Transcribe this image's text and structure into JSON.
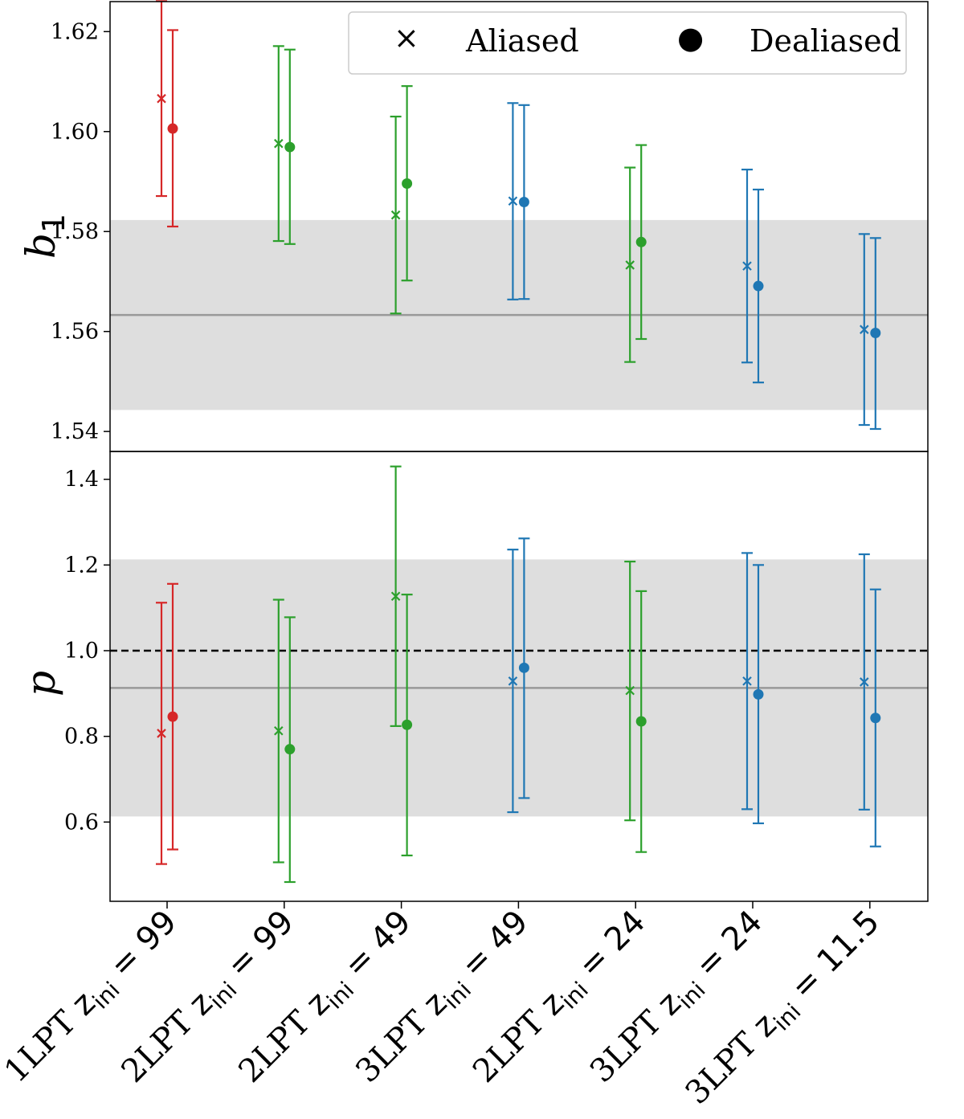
{
  "chart_data": [
    {
      "type": "errorbar",
      "panel": "top",
      "ylabel_main": "b",
      "ylabel_sub": "1",
      "ylim": [
        1.536,
        1.626
      ],
      "yticks": [
        1.54,
        1.56,
        1.58,
        1.6,
        1.62
      ],
      "ytick_labels": [
        "1.54",
        "1.56",
        "1.58",
        "1.60",
        "1.62"
      ],
      "reference": {
        "mean": 1.5633,
        "band": [
          1.5443,
          1.5823
        ]
      },
      "series": [
        {
          "name": "Aliased",
          "marker": "x",
          "values": [
            1.6066,
            1.5976,
            1.5833,
            1.5861,
            1.5733,
            1.5731,
            1.5604
          ],
          "lower": [
            1.5871,
            1.5781,
            1.5636,
            1.5664,
            1.5539,
            1.5538,
            1.5413
          ],
          "upper": [
            1.6261,
            1.6171,
            1.603,
            1.6057,
            1.5928,
            1.5924,
            1.5795
          ]
        },
        {
          "name": "Dealiased",
          "marker": "o",
          "values": [
            1.6006,
            1.5969,
            1.5896,
            1.5859,
            1.5779,
            1.5691,
            1.5597
          ],
          "lower": [
            1.581,
            1.5775,
            1.5702,
            1.5665,
            1.5585,
            1.5498,
            1.5405
          ],
          "upper": [
            1.6203,
            1.6164,
            1.6091,
            1.6053,
            1.5973,
            1.5884,
            1.5787
          ]
        }
      ]
    },
    {
      "type": "errorbar",
      "panel": "bottom",
      "ylabel_main": "p",
      "ylim": [
        0.415,
        1.465
      ],
      "yticks": [
        0.6,
        0.8,
        1.0,
        1.2,
        1.4
      ],
      "ytick_labels": [
        "0.6",
        "0.8",
        "1.0",
        "1.2",
        "1.4"
      ],
      "reference": {
        "mean": 0.913,
        "band": [
          0.613,
          1.213
        ]
      },
      "dashed_line": 1.0,
      "series": [
        {
          "name": "Aliased",
          "marker": "x",
          "values": [
            0.807,
            0.813,
            1.127,
            0.929,
            0.907,
            0.929,
            0.927
          ],
          "lower": [
            0.502,
            0.506,
            0.824,
            0.623,
            0.604,
            0.63,
            0.629
          ],
          "upper": [
            1.112,
            1.119,
            1.43,
            1.236,
            1.208,
            1.228,
            1.225
          ]
        },
        {
          "name": "Dealiased",
          "marker": "o",
          "values": [
            0.846,
            0.77,
            0.827,
            0.96,
            0.835,
            0.898,
            0.843
          ],
          "lower": [
            0.536,
            0.46,
            0.522,
            0.656,
            0.53,
            0.597,
            0.543
          ],
          "upper": [
            1.156,
            1.078,
            1.131,
            1.262,
            1.139,
            1.2,
            1.143
          ]
        }
      ]
    }
  ],
  "categories": [
    {
      "method": "1LPT",
      "z": "99",
      "color": "#d62728"
    },
    {
      "method": "2LPT",
      "z": "99",
      "color": "#2ca02c"
    },
    {
      "method": "2LPT",
      "z": "49",
      "color": "#2ca02c"
    },
    {
      "method": "3LPT",
      "z": "49",
      "color": "#1f77b4"
    },
    {
      "method": "2LPT",
      "z": "24",
      "color": "#2ca02c"
    },
    {
      "method": "3LPT",
      "z": "24",
      "color": "#1f77b4"
    },
    {
      "method": "3LPT",
      "z": "11.5",
      "color": "#1f77b4"
    }
  ],
  "xtick_symbol": "z",
  "xtick_subscript": "ini",
  "xtick_eq": " = ",
  "legend": {
    "aliased": "Aliased",
    "dealiased": "Dealiased",
    "aliased_symbol": "×",
    "dealiased_symbol": "●",
    "location": "top-right"
  },
  "colors": {
    "band": "#dedede",
    "mean_line": "#999999",
    "dashed": "#000000",
    "frame": "#000000"
  }
}
